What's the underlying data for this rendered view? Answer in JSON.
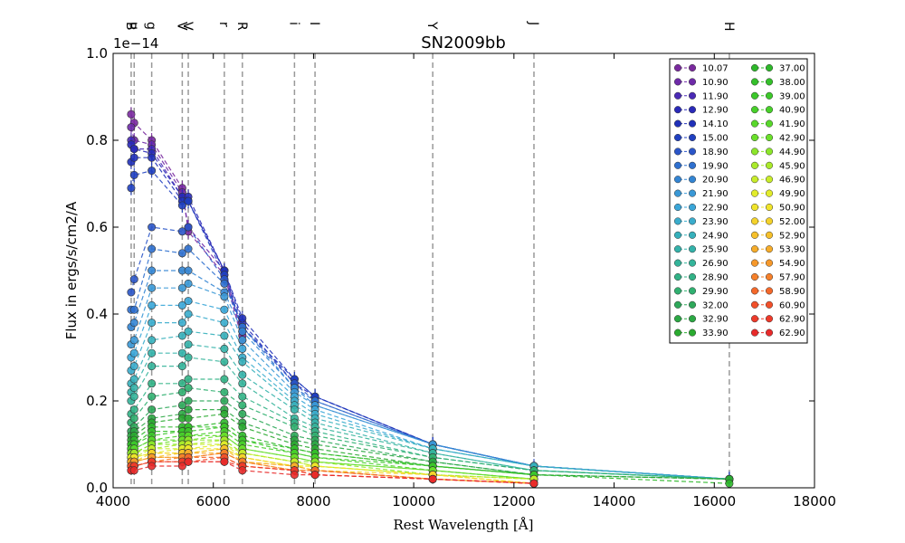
{
  "chart_data": {
    "type": "line",
    "title": "SN2009bb",
    "xlabel": "Rest Wavelength [Å]",
    "ylabel": "Flux in ergs/s/cm2/A",
    "y_offset_label": "1e−14",
    "xlim": [
      4000,
      18000
    ],
    "ylim": [
      0.0,
      1.0
    ],
    "x_ticks": [
      4000,
      6000,
      8000,
      10000,
      12000,
      14000,
      16000,
      18000
    ],
    "x_tick_labels": [
      "4000",
      "6000",
      "8000",
      "10000",
      "12000",
      "14000",
      "16000",
      "18000"
    ],
    "y_ticks": [
      0.0,
      0.2,
      0.4,
      0.6,
      0.8,
      1.0
    ],
    "y_tick_labels": [
      "0.0",
      "0.2",
      "0.4",
      "0.6",
      "0.8",
      "1.0"
    ],
    "grid": false,
    "legend_position": "top-right",
    "filters": [
      {
        "label": "B",
        "wavelength": 4360
      },
      {
        "label": "u",
        "wavelength": 4420
      },
      {
        "label": "g",
        "wavelength": 4770
      },
      {
        "label": "V",
        "wavelength": 5380
      },
      {
        "label": "V",
        "wavelength": 5500
      },
      {
        "label": "r",
        "wavelength": 6220
      },
      {
        "label": "R",
        "wavelength": 6580
      },
      {
        "label": "i",
        "wavelength": 7620
      },
      {
        "label": "I",
        "wavelength": 8030
      },
      {
        "label": "Y",
        "wavelength": 10380
      },
      {
        "label": "J",
        "wavelength": 12400
      },
      {
        "label": "H",
        "wavelength": 16300
      }
    ],
    "wavelengths": [
      4360,
      4420,
      4770,
      5380,
      5500,
      6220,
      6580,
      7620,
      8030,
      10380,
      12400,
      16300
    ],
    "series": [
      {
        "name": "10.07",
        "color": "#7a2a9e",
        "values": [
          0.86,
          0.84,
          0.8,
          0.69,
          0.59,
          0.49,
          0.34,
          null,
          null,
          null,
          null,
          null
        ]
      },
      {
        "name": "10.90",
        "color": "#6e2aa8",
        "values": [
          0.83,
          0.8,
          0.79,
          0.68,
          0.6,
          0.5,
          0.35,
          null,
          null,
          null,
          null,
          null
        ]
      },
      {
        "name": "11.90",
        "color": "#4a2ab5",
        "values": [
          0.8,
          0.78,
          0.78,
          0.67,
          0.66,
          0.5,
          0.36,
          null,
          null,
          null,
          null,
          null
        ]
      },
      {
        "name": "12.90",
        "color": "#2a2ab8",
        "values": [
          0.79,
          0.78,
          0.77,
          0.67,
          0.67,
          0.5,
          0.38,
          0.24,
          0.21,
          0.1,
          0.05,
          0.02
        ]
      },
      {
        "name": "14.10",
        "color": "#2030b8",
        "values": [
          0.75,
          0.76,
          0.76,
          0.66,
          0.66,
          0.5,
          0.39,
          0.25,
          0.21,
          0.1,
          0.05,
          0.02
        ]
      },
      {
        "name": "15.00",
        "color": "#2040c0",
        "values": [
          0.69,
          0.72,
          0.73,
          0.65,
          0.66,
          0.49,
          0.37,
          0.25,
          0.21,
          0.1,
          0.05,
          0.02
        ]
      },
      {
        "name": "18.90",
        "color": "#2a55c8",
        "values": [
          0.45,
          0.48,
          0.6,
          0.59,
          0.6,
          0.48,
          0.37,
          0.24,
          0.2,
          0.1,
          0.05,
          0.02
        ]
      },
      {
        "name": "19.90",
        "color": "#2f70cf",
        "values": [
          0.41,
          0.41,
          0.55,
          0.54,
          0.55,
          0.47,
          0.37,
          0.23,
          0.2,
          0.1,
          0.05,
          0.02
        ]
      },
      {
        "name": "20.90",
        "color": "#3385d3",
        "values": [
          0.37,
          0.38,
          0.5,
          0.5,
          0.5,
          0.45,
          0.36,
          0.23,
          0.19,
          0.1,
          0.05,
          0.02
        ]
      },
      {
        "name": "21.90",
        "color": "#3a98d6",
        "values": [
          0.33,
          0.34,
          0.46,
          0.46,
          0.47,
          0.44,
          0.34,
          0.22,
          0.19,
          0.1,
          0.05,
          0.02
        ]
      },
      {
        "name": "22.90",
        "color": "#3aa6d8",
        "values": [
          0.3,
          0.31,
          0.42,
          0.42,
          0.43,
          0.41,
          0.32,
          0.21,
          0.18,
          0.09,
          0.05,
          0.02
        ]
      },
      {
        "name": "23.90",
        "color": "#3aaccc",
        "values": [
          0.27,
          0.28,
          0.38,
          0.38,
          0.4,
          0.38,
          0.3,
          0.2,
          0.17,
          0.09,
          0.05,
          0.02
        ]
      },
      {
        "name": "24.90",
        "color": "#36b0bb",
        "values": [
          0.24,
          0.25,
          0.34,
          0.35,
          0.36,
          0.35,
          0.29,
          0.19,
          0.16,
          0.09,
          0.05,
          0.02
        ]
      },
      {
        "name": "25.90",
        "color": "#34b2aa",
        "values": [
          0.22,
          0.23,
          0.31,
          0.31,
          0.33,
          0.32,
          0.26,
          0.18,
          0.15,
          0.08,
          0.04,
          0.02
        ]
      },
      {
        "name": "26.90",
        "color": "#34b49a",
        "values": [
          0.2,
          0.21,
          0.28,
          0.28,
          0.3,
          0.29,
          0.24,
          0.16,
          0.14,
          0.08,
          0.04,
          0.02
        ]
      },
      {
        "name": "28.90",
        "color": "#32b286",
        "values": [
          0.17,
          0.18,
          0.24,
          0.24,
          0.25,
          0.25,
          0.21,
          0.15,
          0.13,
          0.07,
          0.04,
          0.02
        ]
      },
      {
        "name": "29.90",
        "color": "#30b070",
        "values": [
          0.15,
          0.16,
          0.21,
          0.22,
          0.23,
          0.22,
          0.19,
          0.14,
          0.12,
          0.07,
          0.04,
          0.02
        ]
      },
      {
        "name": "32.00",
        "color": "#2ea85a",
        "values": [
          0.13,
          0.14,
          0.18,
          0.19,
          0.2,
          0.2,
          0.17,
          0.12,
          0.11,
          0.06,
          0.03,
          0.02
        ]
      },
      {
        "name": "32.90",
        "color": "#2ca844",
        "values": [
          0.12,
          0.13,
          0.16,
          0.17,
          0.18,
          0.18,
          0.15,
          0.11,
          0.1,
          0.06,
          0.03,
          0.02
        ]
      },
      {
        "name": "33.90",
        "color": "#2aaa30",
        "values": [
          0.11,
          0.12,
          0.15,
          0.16,
          0.16,
          0.17,
          0.14,
          0.1,
          0.09,
          0.05,
          0.03,
          0.02
        ]
      },
      {
        "name": "37.00",
        "color": "#2eb82a",
        "values": [
          0.1,
          0.11,
          0.14,
          0.14,
          0.14,
          0.15,
          0.12,
          0.09,
          0.08,
          0.05,
          0.03,
          0.01
        ]
      },
      {
        "name": "38.00",
        "color": "#34c02a",
        "values": [
          0.1,
          0.1,
          0.13,
          0.13,
          0.14,
          0.14,
          0.11,
          0.09,
          0.08,
          0.05,
          0.03,
          null
        ]
      },
      {
        "name": "39.00",
        "color": "#3cc82a",
        "values": [
          0.09,
          0.1,
          0.12,
          0.13,
          0.13,
          0.14,
          0.11,
          0.08,
          0.07,
          0.05,
          0.03,
          null
        ]
      },
      {
        "name": "40.90",
        "color": "#48d02a",
        "values": [
          0.09,
          0.09,
          0.11,
          0.12,
          0.12,
          0.13,
          0.1,
          0.08,
          0.07,
          0.04,
          0.02,
          null
        ]
      },
      {
        "name": "41.90",
        "color": "#58d82a",
        "values": [
          0.08,
          0.09,
          0.11,
          0.11,
          0.12,
          0.12,
          0.09,
          0.07,
          0.06,
          0.04,
          0.02,
          null
        ]
      },
      {
        "name": "42.90",
        "color": "#6ae02a",
        "values": [
          0.08,
          0.08,
          0.1,
          0.11,
          0.11,
          0.12,
          0.09,
          0.07,
          0.06,
          0.04,
          0.02,
          null
        ]
      },
      {
        "name": "44.90",
        "color": "#8ce62a",
        "values": [
          0.08,
          0.08,
          0.1,
          0.1,
          0.11,
          0.11,
          0.08,
          0.06,
          0.06,
          0.03,
          0.02,
          null
        ]
      },
      {
        "name": "45.90",
        "color": "#aaea2a",
        "values": [
          0.07,
          0.08,
          0.09,
          0.1,
          0.1,
          0.11,
          0.08,
          0.06,
          0.05,
          0.03,
          0.02,
          null
        ]
      },
      {
        "name": "46.90",
        "color": "#c8ec2a",
        "values": [
          0.07,
          0.07,
          0.09,
          0.09,
          0.1,
          0.1,
          0.08,
          0.06,
          0.05,
          0.03,
          0.02,
          null
        ]
      },
      {
        "name": "49.90",
        "color": "#e2ec2a",
        "values": [
          0.07,
          0.07,
          0.08,
          0.09,
          0.09,
          0.1,
          0.07,
          0.05,
          0.05,
          0.03,
          0.01,
          null
        ]
      },
      {
        "name": "50.90",
        "color": "#f0e42a",
        "values": [
          0.06,
          0.07,
          0.08,
          0.08,
          0.09,
          0.09,
          0.07,
          0.05,
          0.05,
          0.03,
          0.01,
          null
        ]
      },
      {
        "name": "52.00",
        "color": "#f4d22a",
        "values": [
          0.06,
          0.06,
          0.08,
          0.08,
          0.08,
          0.09,
          0.07,
          0.05,
          0.04,
          0.03,
          0.01,
          null
        ]
      },
      {
        "name": "52.90",
        "color": "#f6c02a",
        "values": [
          0.06,
          0.06,
          0.07,
          0.08,
          0.08,
          0.09,
          0.06,
          0.05,
          0.04,
          0.02,
          0.01,
          null
        ]
      },
      {
        "name": "53.90",
        "color": "#f6ac2a",
        "values": [
          0.06,
          0.06,
          0.07,
          0.07,
          0.08,
          0.08,
          0.06,
          0.05,
          0.04,
          0.02,
          0.01,
          null
        ]
      },
      {
        "name": "54.90",
        "color": "#f6982a",
        "values": [
          0.05,
          0.06,
          0.07,
          0.07,
          0.07,
          0.08,
          0.06,
          0.04,
          0.04,
          0.02,
          0.01,
          null
        ]
      },
      {
        "name": "57.90",
        "color": "#f6802a",
        "values": [
          0.05,
          0.05,
          0.06,
          0.07,
          0.07,
          0.08,
          0.06,
          0.04,
          0.04,
          0.02,
          0.01,
          null
        ]
      },
      {
        "name": "58.90",
        "color": "#f4682a",
        "values": [
          0.05,
          0.05,
          0.06,
          0.06,
          0.07,
          0.07,
          0.05,
          0.04,
          0.04,
          0.02,
          0.01,
          null
        ]
      },
      {
        "name": "60.90",
        "color": "#f2502a",
        "values": [
          0.05,
          0.05,
          0.06,
          0.06,
          0.06,
          0.07,
          0.05,
          0.04,
          0.03,
          0.02,
          0.01,
          null
        ]
      },
      {
        "name": "62.90",
        "color": "#ee3a2a",
        "values": [
          0.04,
          0.05,
          0.06,
          0.06,
          0.06,
          0.06,
          0.05,
          0.04,
          0.03,
          0.02,
          0.01,
          null
        ]
      },
      {
        "name": "62.90",
        "color": "#e82a2a",
        "values": [
          0.04,
          0.04,
          0.05,
          0.05,
          0.06,
          0.06,
          0.04,
          0.03,
          0.03,
          0.02,
          0.01,
          null
        ]
      }
    ]
  }
}
